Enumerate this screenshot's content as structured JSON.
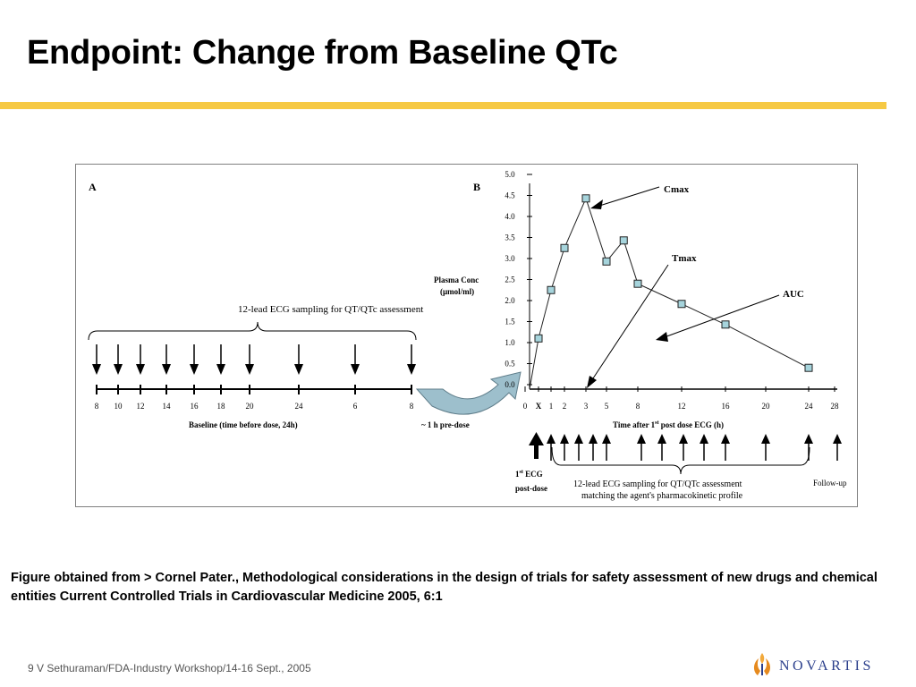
{
  "title": "Endpoint: Change from Baseline QTc",
  "colors": {
    "accent_rule": "#f6c944",
    "marker_fill": "#a6d4dc",
    "curved_arrow": "#9dbfcc",
    "logo_blue": "#2b3f8c",
    "logo_orange": "#e68a1e"
  },
  "panel_a": {
    "label": "A",
    "brace_label": "12-lead ECG sampling for QT/QTc assessment",
    "ticks": [
      "8",
      "10",
      "12",
      "14",
      "16",
      "18",
      "20",
      "24",
      "6",
      "8"
    ],
    "axis_label": "Baseline  (time before dose, 24h)",
    "predose_label": "~ 1 h  pre-dose"
  },
  "panel_b": {
    "label": "B",
    "y_label_line1": "Plasma Conc",
    "y_label_line2": "(µmol/ml)",
    "y_ticks": [
      "0.0",
      "0.5",
      "1.0",
      "1.5",
      "2.0",
      "2.5",
      "3.0",
      "3.5",
      "4.0",
      "4.5",
      "5.0"
    ],
    "x_ticks": [
      "0",
      "X",
      "1",
      "2",
      "3",
      "5",
      "8",
      "12",
      "16",
      "20",
      "24",
      "28"
    ],
    "x_label_pre": "Time after 1",
    "x_label_sup": "st",
    "x_label_post": " post dose ECG (h)",
    "cmax_label": "Cmax",
    "tmax_label": "Tmax",
    "auc_label": "AUC",
    "first_ecg_line1": "1",
    "first_ecg_sup": "st",
    "first_ecg_line1_rest": " ECG",
    "first_ecg_line2": "post-dose",
    "brace_label_line1": "12-lead ECG sampling for QT/QTc assessment",
    "brace_label_line2": "matching the agent's pharmacokinetic profile",
    "followup_label": "Follow-up"
  },
  "chart_data": {
    "type": "line",
    "ylabel": "Plasma Conc (µmol/ml)",
    "ylim": [
      0,
      5.0
    ],
    "x_categories": [
      "0",
      "X",
      "1",
      "2",
      "3",
      "5",
      "8",
      "12",
      "16",
      "20",
      "24",
      "28"
    ],
    "series": [
      {
        "x_tick_index": [
          1.0,
          2.0,
          3.0,
          4.0,
          5.0,
          5.55,
          6.0,
          7.0,
          8.0,
          10.0
        ],
        "values": [
          1.1,
          2.25,
          3.25,
          4.43,
          2.93,
          3.43,
          2.4,
          1.92,
          1.43,
          0.4
        ]
      }
    ]
  },
  "caption": "Figure obtained from > Cornel Pater., Methodological considerations in the design of trials for safety assessment of new drugs and chemical entities Current Controlled Trials in Cardiovascular Medicine 2005, 6:1",
  "footer": {
    "text": "9 V Sethuraman/FDA-Industry Workshop/14-16 Sept., 2005",
    "logo_text": "NOVARTIS",
    "logo_icon": "novartis-flame-icon"
  }
}
